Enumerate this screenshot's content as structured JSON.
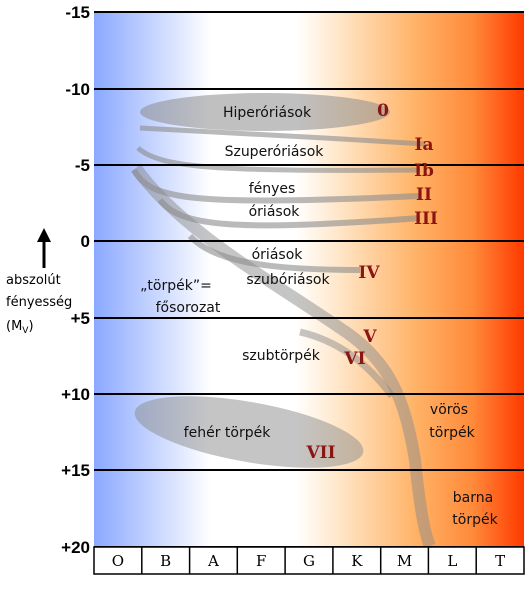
{
  "y_axis": {
    "ticks": [
      "-15",
      "-10",
      "-5",
      "0",
      "+5",
      "+10",
      "+15",
      "+20"
    ],
    "title_lines": [
      "abszolút",
      "fényesség",
      "(M",
      "V",
      ")"
    ]
  },
  "spectral_classes": [
    "O",
    "B",
    "A",
    "F",
    "G",
    "K",
    "M",
    "L",
    "T"
  ],
  "regions": {
    "hyper": "Hiperóriások",
    "super": "Szuperóriások",
    "bright_1": "fényes",
    "bright_2": "óriások",
    "giants_1": "óriások",
    "giants_2": "szubóriások",
    "main_1": "„törpék”=",
    "main_2": "fősorozat",
    "subdwarf": "szubtörpék",
    "white_dwarf": "fehér törpék",
    "red_1": "vörös",
    "red_2": "törpék",
    "brown_1": "barna",
    "brown_2": "törpék"
  },
  "luminosity_classes": {
    "c0": "0",
    "cIa": "Ia",
    "cIb": "Ib",
    "cII": "II",
    "cIII": "III",
    "cIV": "IV",
    "cV": "V",
    "cVI": "VI",
    "cVII": "VII"
  },
  "colors": {
    "cool_blue": "#8aa8ff",
    "warm_orange": "#ffa040",
    "hot_red": "#ff3a00",
    "roman_numerals": "#8b1414",
    "band_gray": "#8c8c8c"
  }
}
